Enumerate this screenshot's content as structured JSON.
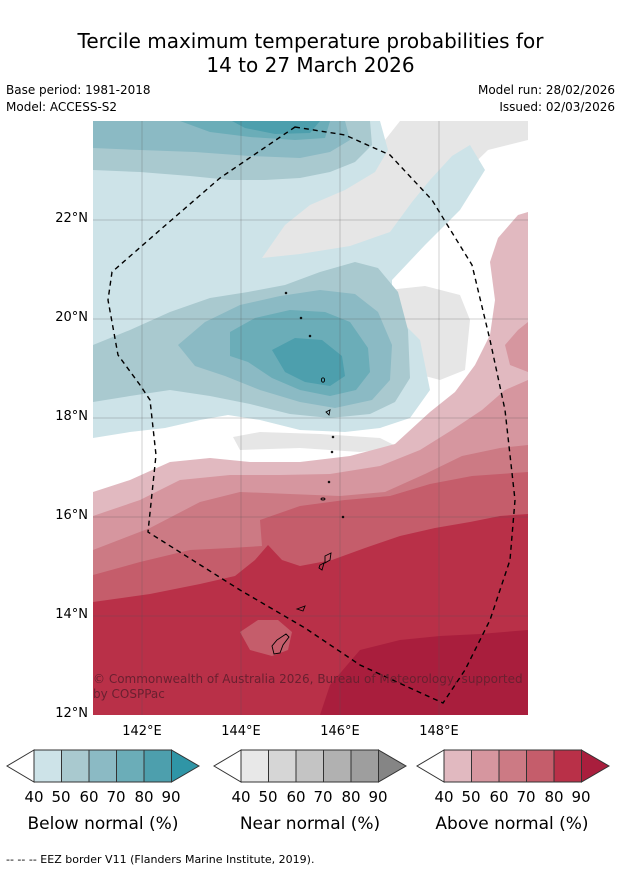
{
  "title": {
    "line1": "Tercile maximum temperature probabilities for",
    "line2": "14 to 27 March 2026"
  },
  "meta": {
    "base_period": "Base period: 1981-2018",
    "model": "Model: ACCESS-S2",
    "model_run": "Model run: 28/02/2026",
    "issued": "Issued: 02/03/2026"
  },
  "map": {
    "lat_labels": [
      "22°N",
      "20°N",
      "18°N",
      "16°N",
      "14°N",
      "12°N"
    ],
    "lon_labels": [
      "142°E",
      "144°E",
      "146°E",
      "148°E"
    ],
    "copyright": "© Commonwealth of Australia 2026, Bureau of Meteorology, supported by COSPPac"
  },
  "colorbars": [
    {
      "title": "Below normal (%)",
      "ticks": [
        "40",
        "50",
        "60",
        "70",
        "80",
        "90"
      ],
      "colors": [
        "#cde3e8",
        "#a9c9cf",
        "#8bbac4",
        "#6badb8",
        "#4d9fad",
        "#2f95a6"
      ]
    },
    {
      "title": "Near normal (%)",
      "ticks": [
        "40",
        "50",
        "60",
        "70",
        "80",
        "90"
      ],
      "colors": [
        "#e8e8e8",
        "#d6d6d6",
        "#c4c4c4",
        "#b1b1b1",
        "#9e9e9e",
        "#858585"
      ]
    },
    {
      "title": "Above normal (%)",
      "ticks": [
        "40",
        "50",
        "60",
        "70",
        "80",
        "90"
      ],
      "colors": [
        "#e1b9c0",
        "#d6969f",
        "#cc7a84",
        "#c55d6b",
        "#b93048",
        "#a91e3d"
      ]
    }
  ],
  "footer": "--  --  -- EEZ border V11 (Flanders Marine Institute, 2019)."
}
